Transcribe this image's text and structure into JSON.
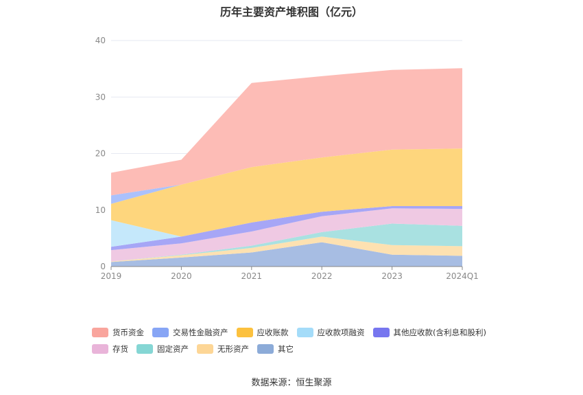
{
  "chart_data": {
    "type": "area",
    "stacked": true,
    "title": "历年主要资产堆积图（亿元）",
    "source": "数据来源：恒生聚源",
    "categories": [
      "2019",
      "2020",
      "2021",
      "2022",
      "2023",
      "2024Q1"
    ],
    "ylim": [
      0,
      40
    ],
    "yticks": [
      "0",
      "10",
      "20",
      "30",
      "40"
    ],
    "grid": true,
    "legend_position": "bottom",
    "series": [
      {
        "name": "其它",
        "color": "#a7bde3",
        "values": [
          0.8,
          1.6,
          2.5,
          4.3,
          2.1,
          1.9
        ]
      },
      {
        "name": "无形资产",
        "color": "#fde1b1",
        "values": [
          0.1,
          0.4,
          0.8,
          1.0,
          1.7,
          1.7
        ]
      },
      {
        "name": "固定资产",
        "color": "#a9e1e1",
        "values": [
          0.0,
          0.1,
          0.4,
          0.8,
          3.8,
          3.6
        ]
      },
      {
        "name": "存货",
        "color": "#efc9e3",
        "values": [
          2.0,
          2.0,
          2.5,
          2.8,
          2.7,
          3.0
        ]
      },
      {
        "name": "其他应收款(含利息和股利)",
        "color": "#a6a6f6",
        "values": [
          0.6,
          1.2,
          1.6,
          0.8,
          0.4,
          0.5
        ]
      },
      {
        "name": "应收款项融资",
        "color": "#c5e8fb",
        "values": [
          4.7,
          0.0,
          0.0,
          0.0,
          0.0,
          0.0
        ]
      },
      {
        "name": "应收账款",
        "color": "#fed67d",
        "values": [
          2.9,
          9.2,
          9.8,
          9.6,
          10.0,
          10.2
        ]
      },
      {
        "name": "交易性金融资产",
        "color": "#abc1fb",
        "values": [
          1.5,
          0.0,
          0.0,
          0.0,
          0.0,
          0.0
        ]
      },
      {
        "name": "货币资金",
        "color": "#fdbcb6",
        "values": [
          4.0,
          4.4,
          14.9,
          14.4,
          14.1,
          14.2
        ]
      }
    ],
    "legend": [
      {
        "name": "货币资金",
        "color": "#f9a59d"
      },
      {
        "name": "交易性金融资产",
        "color": "#87a5f5"
      },
      {
        "name": "应收账款",
        "color": "#fcc13e"
      },
      {
        "name": "应收款项融资",
        "color": "#a4dcf9"
      },
      {
        "name": "其他应收款(含利息和股利)",
        "color": "#7776ef"
      },
      {
        "name": "存货",
        "color": "#e9b4d9"
      },
      {
        "name": "固定资产",
        "color": "#85d6d4"
      },
      {
        "name": "无形资产",
        "color": "#fdd696"
      },
      {
        "name": "其它",
        "color": "#8cabd8"
      }
    ]
  }
}
